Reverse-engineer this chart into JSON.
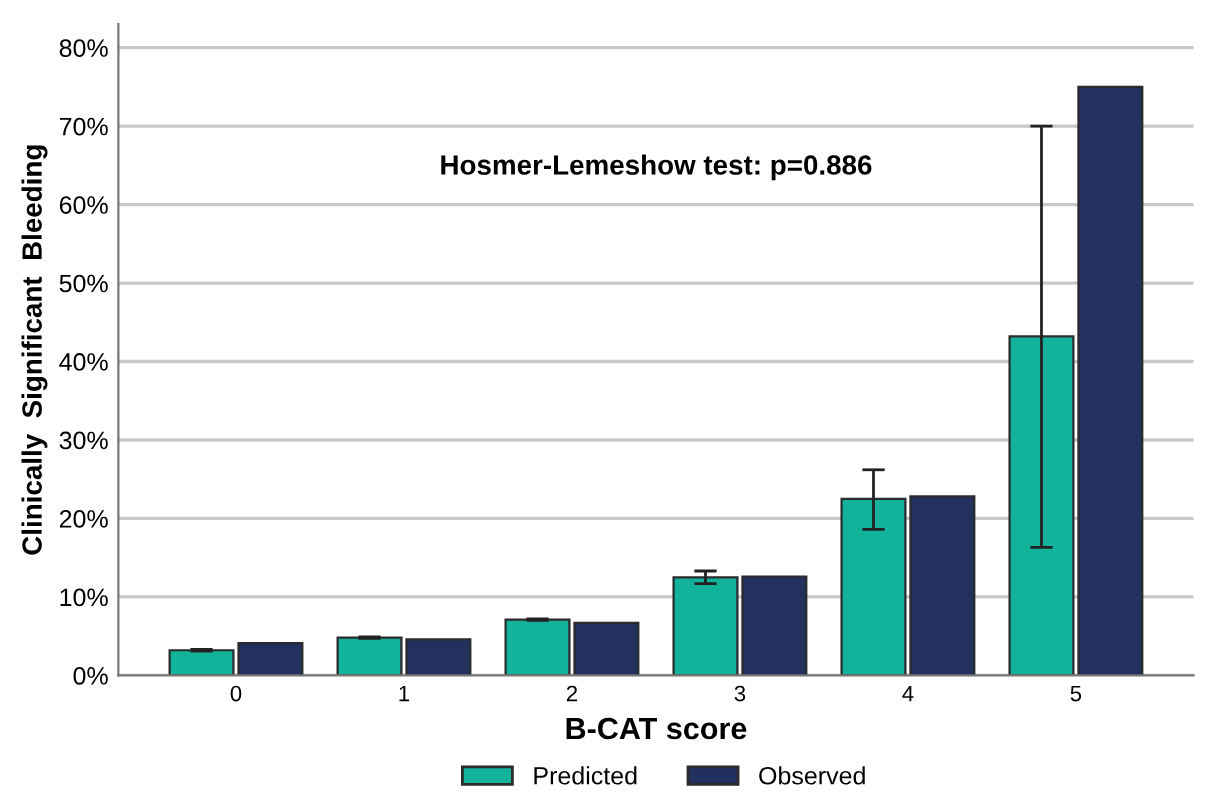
{
  "chart_data": {
    "type": "bar",
    "xlabel": "B-CAT score",
    "ylabel": "Clinically  Significant  Bleeding",
    "categories": [
      "0",
      "1",
      "2",
      "3",
      "4",
      "5"
    ],
    "series": [
      {
        "name": "Predicted",
        "color": "#12b39a",
        "values": [
          3.2,
          4.8,
          7.1,
          12.5,
          22.5,
          43.2
        ],
        "errors": [
          0.1,
          0.1,
          0.1,
          [
            11.7,
            13.3
          ],
          [
            18.6,
            26.2
          ],
          [
            16.3,
            70.0
          ]
        ]
      },
      {
        "name": "Observed",
        "color": "#22315f",
        "values": [
          4.1,
          4.6,
          6.7,
          12.6,
          22.8,
          75.0
        ]
      }
    ],
    "ylim": [
      0,
      83
    ],
    "yticks": [
      {
        "value": 0,
        "label": "0%"
      },
      {
        "value": 10,
        "label": "10%"
      },
      {
        "value": 20,
        "label": "20%"
      },
      {
        "value": 30,
        "label": "30%"
      },
      {
        "value": 40,
        "label": "40%"
      },
      {
        "value": 50,
        "label": "50%"
      },
      {
        "value": 60,
        "label": "60%"
      },
      {
        "value": 70,
        "label": "70%"
      },
      {
        "value": 80,
        "label": "80%"
      }
    ],
    "grid": "y",
    "legend": "bottom",
    "annotations": [
      "Hosmer-Lemeshow test: p=0.886"
    ]
  }
}
